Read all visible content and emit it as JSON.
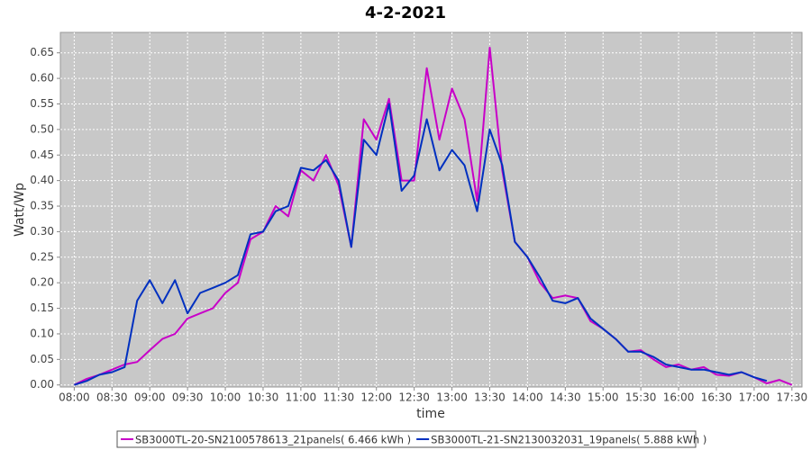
{
  "chart_data": {
    "type": "line",
    "title": "4-2-2021",
    "x_label": "time",
    "y_label": "Watt/Wp",
    "x": [
      480,
      490,
      500,
      510,
      520,
      530,
      540,
      550,
      560,
      570,
      580,
      590,
      600,
      610,
      620,
      630,
      640,
      650,
      660,
      670,
      680,
      690,
      700,
      710,
      720,
      730,
      740,
      750,
      760,
      770,
      780,
      790,
      800,
      810,
      820,
      830,
      840,
      850,
      860,
      870,
      880,
      890,
      900,
      910,
      920,
      930,
      940,
      950,
      960,
      970,
      980,
      990,
      1000,
      1010,
      1020,
      1030,
      1040,
      1050
    ],
    "series": [
      {
        "name": "SB3000TL-20-SN2100578613_21panels( 6.466 kWh )",
        "color": "#c800c8",
        "values": [
          0,
          0.012,
          0.02,
          0.03,
          0.04,
          0.045,
          0.068,
          0.09,
          0.1,
          0.13,
          0.14,
          0.15,
          0.18,
          0.2,
          0.285,
          0.3,
          0.35,
          0.33,
          0.42,
          0.4,
          0.45,
          0.39,
          0.27,
          0.52,
          0.48,
          0.56,
          0.4,
          0.4,
          0.62,
          0.48,
          0.58,
          0.52,
          0.36,
          0.66,
          0.42,
          0.28,
          0.25,
          0.2,
          0.17,
          0.175,
          0.17,
          0.125,
          0.11,
          0.09,
          0.065,
          0.068,
          0.05,
          0.035,
          0.04,
          0.03,
          0.035,
          0.02,
          0.018,
          0.025,
          0.015,
          0.003,
          0.01,
          0
        ]
      },
      {
        "name": "SB3000TL-21-SN2130032031_19panels( 5.888 kWh )",
        "color": "#0030c0",
        "values": [
          0,
          0.008,
          0.02,
          0.025,
          0.035,
          0.165,
          0.205,
          0.16,
          0.205,
          0.14,
          0.18,
          0.19,
          0.2,
          0.215,
          0.295,
          0.3,
          0.34,
          0.35,
          0.425,
          0.42,
          0.44,
          0.4,
          0.27,
          0.48,
          0.45,
          0.55,
          0.38,
          0.41,
          0.52,
          0.42,
          0.46,
          0.43,
          0.34,
          0.5,
          0.43,
          0.28,
          0.25,
          0.21,
          0.165,
          0.16,
          0.17,
          0.13,
          0.11,
          0.09,
          0.065,
          0.065,
          0.055,
          0.04,
          0.035,
          0.03,
          0.03,
          0.025,
          0.02,
          0.025,
          0.015,
          0.008,
          null,
          null
        ]
      }
    ],
    "xlim": [
      469,
      1058
    ],
    "ylim": [
      -0.004,
      0.69
    ],
    "xticks": [
      {
        "value": 480,
        "label": "08:00"
      },
      {
        "value": 510,
        "label": "08:30"
      },
      {
        "value": 540,
        "label": "09:00"
      },
      {
        "value": 570,
        "label": "09:30"
      },
      {
        "value": 600,
        "label": "10:00"
      },
      {
        "value": 630,
        "label": "10:30"
      },
      {
        "value": 660,
        "label": "11:00"
      },
      {
        "value": 690,
        "label": "11:30"
      },
      {
        "value": 720,
        "label": "12:00"
      },
      {
        "value": 750,
        "label": "12:30"
      },
      {
        "value": 780,
        "label": "13:00"
      },
      {
        "value": 810,
        "label": "13:30"
      },
      {
        "value": 840,
        "label": "14:00"
      },
      {
        "value": 870,
        "label": "14:30"
      },
      {
        "value": 900,
        "label": "15:00"
      },
      {
        "value": 930,
        "label": "15:30"
      },
      {
        "value": 960,
        "label": "16:00"
      },
      {
        "value": 990,
        "label": "16:30"
      },
      {
        "value": 1020,
        "label": "17:00"
      },
      {
        "value": 1050,
        "label": "17:30"
      }
    ],
    "yticks": [
      {
        "value": 0,
        "label": "0.00"
      },
      {
        "value": 0.05,
        "label": "0.05"
      },
      {
        "value": 0.1,
        "label": "0.10"
      },
      {
        "value": 0.15,
        "label": "0.15"
      },
      {
        "value": 0.2,
        "label": "0.20"
      },
      {
        "value": 0.25,
        "label": "0.25"
      },
      {
        "value": 0.3,
        "label": "0.30"
      },
      {
        "value": 0.35,
        "label": "0.35"
      },
      {
        "value": 0.4,
        "label": "0.40"
      },
      {
        "value": 0.45,
        "label": "0.45"
      },
      {
        "value": 0.5,
        "label": "0.50"
      },
      {
        "value": 0.55,
        "label": "0.55"
      },
      {
        "value": 0.6,
        "label": "0.60"
      },
      {
        "value": 0.65,
        "label": "0.65"
      }
    ],
    "grid": true,
    "legend": "bottom"
  }
}
